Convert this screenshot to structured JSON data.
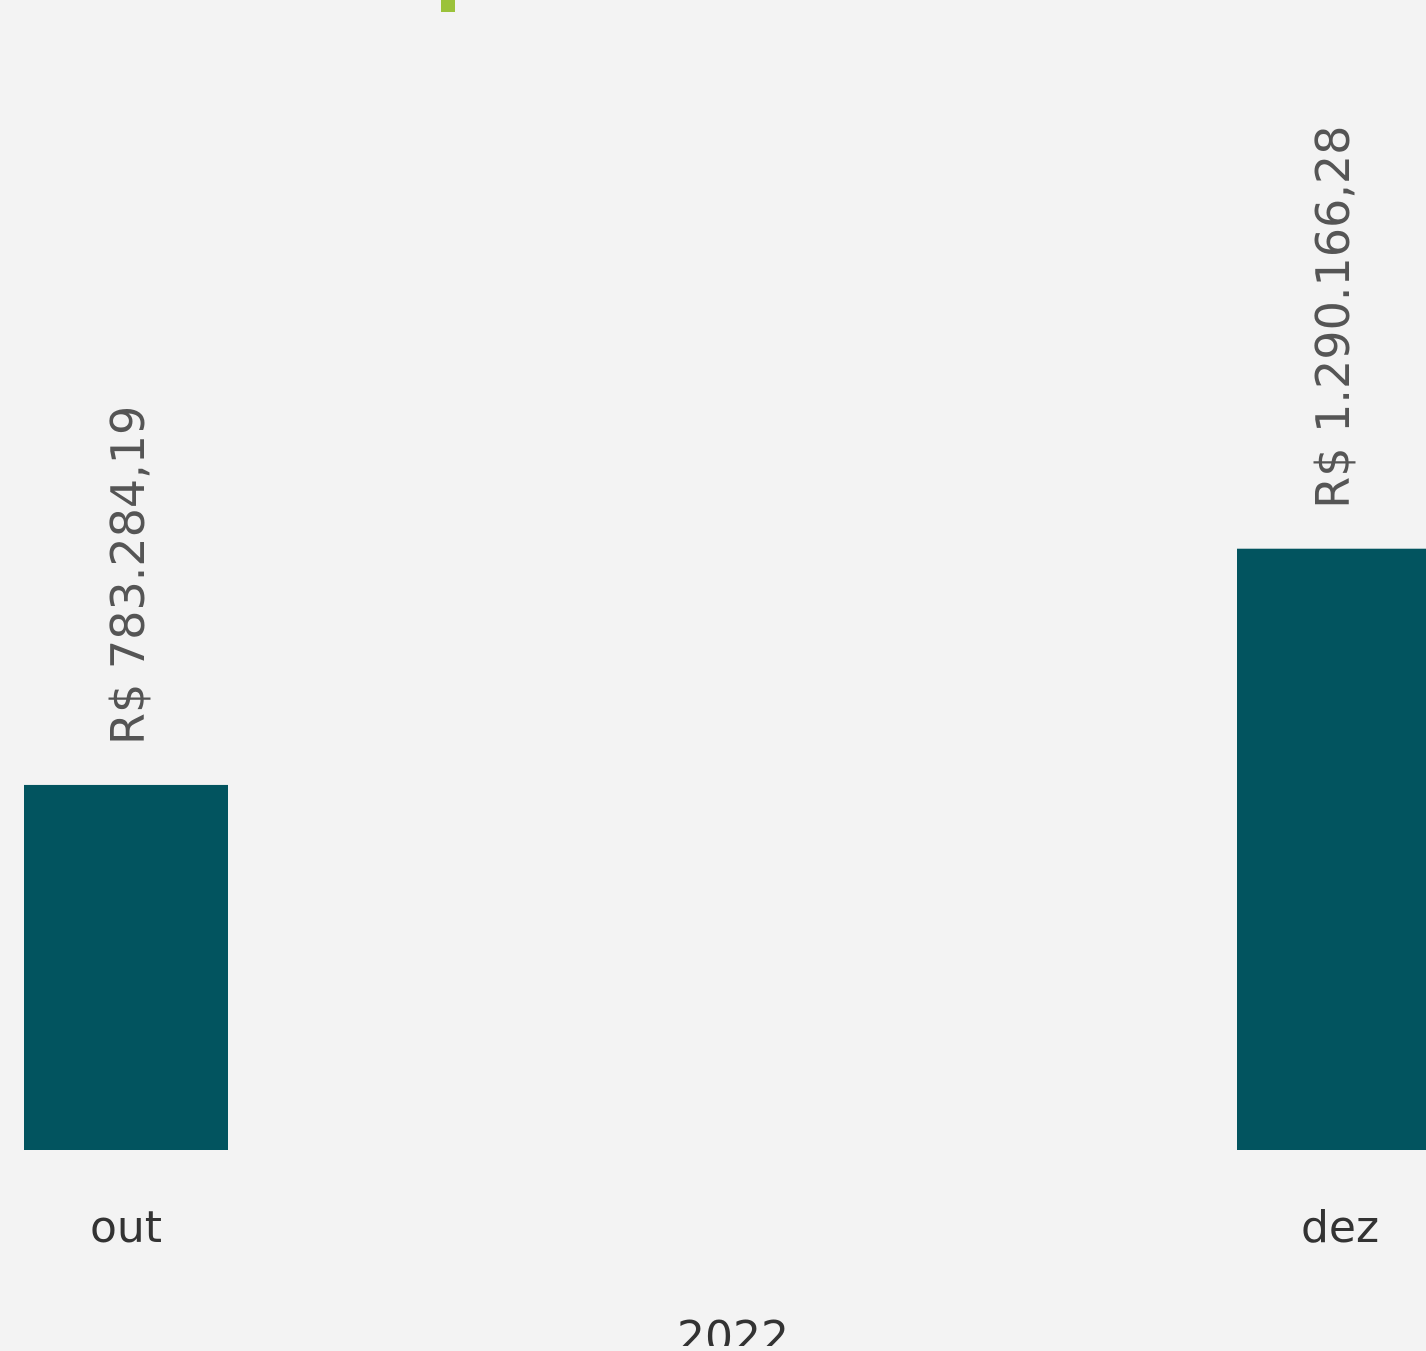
{
  "chart_data": {
    "type": "bar",
    "categories": [
      "out",
      "dez"
    ],
    "values": [
      783284.19,
      1290166.28
    ],
    "data_labels": [
      "R$ 783.284,19",
      "R$ 1.290.166,28"
    ],
    "group_label": "2022",
    "colors": {
      "bar": "#02545f",
      "label": "#555555",
      "axis_text": "#333333",
      "accent": "#9bc23a",
      "background": "#f3f3f3"
    }
  }
}
